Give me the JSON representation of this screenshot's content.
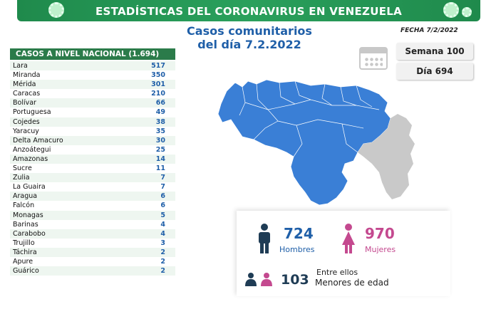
{
  "banner": {
    "title": "ESTADÍSTICAS DEL CORONAVIRUS EN VENEZUELA"
  },
  "subtitle": {
    "line1": "Casos comunitarios",
    "line2": "del día 7.2.2022"
  },
  "fecha": "FECHA 7/2/2022",
  "semana": "Semana 100",
  "dia": "Día 694",
  "table": {
    "header": "CASOS A NIVEL NACIONAL (1.694)",
    "rows": [
      {
        "name": "Lara",
        "value": "517"
      },
      {
        "name": "Miranda",
        "value": "350"
      },
      {
        "name": "Mérida",
        "value": "301"
      },
      {
        "name": "Caracas",
        "value": "210"
      },
      {
        "name": "Bolívar",
        "value": "66"
      },
      {
        "name": "Portuguesa",
        "value": "49"
      },
      {
        "name": "Cojedes",
        "value": "38"
      },
      {
        "name": "Yaracuy",
        "value": "35"
      },
      {
        "name": "Delta Amacuro",
        "value": "30"
      },
      {
        "name": "Anzoátegui",
        "value": "25"
      },
      {
        "name": "Amazonas",
        "value": "14"
      },
      {
        "name": "Sucre",
        "value": "11"
      },
      {
        "name": "Zulia",
        "value": "7"
      },
      {
        "name": "La Guaira",
        "value": "7"
      },
      {
        "name": "Aragua",
        "value": "6"
      },
      {
        "name": "Falcón",
        "value": "6"
      },
      {
        "name": "Monagas",
        "value": "5"
      },
      {
        "name": "Barinas",
        "value": "4"
      },
      {
        "name": "Carabobo",
        "value": "4"
      },
      {
        "name": "Trujillo",
        "value": "3"
      },
      {
        "name": "Táchira",
        "value": "2"
      },
      {
        "name": "Apure",
        "value": "2"
      },
      {
        "name": "Guárico",
        "value": "2"
      }
    ]
  },
  "stats": {
    "hombres_count": "724",
    "hombres_label": "Hombres",
    "mujeres_count": "970",
    "mujeres_label": "Mujeres",
    "entre_label": "Entre ellos",
    "menores_count": "103",
    "menores_label": "Menores de edad"
  },
  "colors": {
    "banner": "#2aa05c",
    "map_blue": "#3a7fd6",
    "esequibo_gray": "#c9c9c9",
    "male": "#1f5fa8",
    "female": "#c4498f"
  },
  "icons": [
    "virus-icon",
    "calendar-icon",
    "male-icon",
    "female-icon",
    "family-icon"
  ]
}
